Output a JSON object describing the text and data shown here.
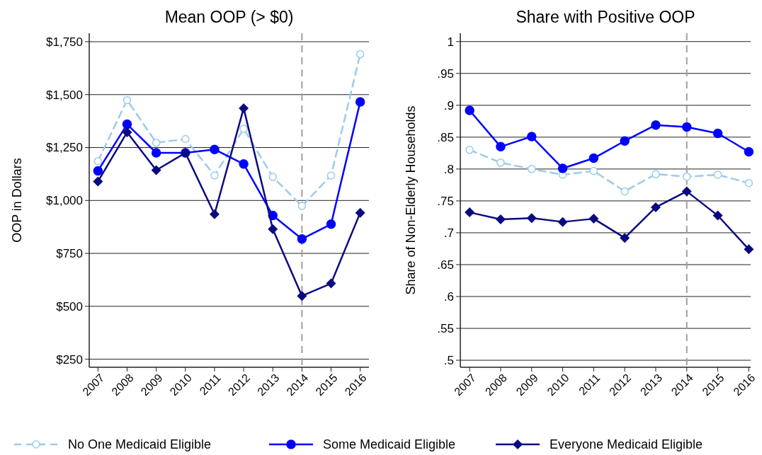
{
  "chart_data": [
    {
      "type": "line",
      "title": "Mean OOP (> $0)",
      "ylabel": "OOP in Dollars",
      "x": [
        2007,
        2008,
        2009,
        2010,
        2011,
        2012,
        2013,
        2014,
        2015,
        2016
      ],
      "xlim": [
        2006.7,
        2016.3
      ],
      "xticks": [
        2007,
        2008,
        2009,
        2010,
        2011,
        2012,
        2013,
        2014,
        2015,
        2016
      ],
      "ylim": [
        212,
        1790
      ],
      "yticks": [
        {
          "value": 250,
          "label": "$250"
        },
        {
          "value": 500,
          "label": "$500"
        },
        {
          "value": 750,
          "label": "$750"
        },
        {
          "value": 1000,
          "label": "$1,000"
        },
        {
          "value": 1250,
          "label": "$1,250"
        },
        {
          "value": 1500,
          "label": "$1,500"
        },
        {
          "value": 1750,
          "label": "$1,750"
        }
      ],
      "grid": "y",
      "legend": "bottom",
      "ref_lines": [
        {
          "axis": "x",
          "value": 2014,
          "color": "#a0a0a0",
          "line_style": "dashed"
        }
      ],
      "series": [
        {
          "name": "No One Medicaid Eligible",
          "color": "#9ccbeb",
          "line_style": "dashed",
          "marker": "circle",
          "values": [
            1186,
            1474,
            1273,
            1290,
            1118,
            1339,
            1111,
            974,
            1118,
            1691
          ]
        },
        {
          "name": "Some Medicaid Eligible",
          "color": "#0000ff",
          "line_style": "solid",
          "marker": "circle",
          "values": [
            1140,
            1360,
            1225,
            1225,
            1241,
            1172,
            929,
            818,
            888,
            1466
          ]
        },
        {
          "name": "Everyone Medicaid Eligible",
          "color": "#0a0a80",
          "line_style": "solid",
          "marker": "diamond",
          "values": [
            1090,
            1322,
            1143,
            1225,
            935,
            1436,
            865,
            549,
            608,
            942
          ]
        }
      ]
    },
    {
      "type": "line",
      "title": "Share with Positive OOP",
      "ylabel": "Share of Non-Elderly Households",
      "x": [
        2007,
        2008,
        2009,
        2010,
        2011,
        2012,
        2013,
        2014,
        2015,
        2016
      ],
      "xlim": [
        2006.7,
        2016.06
      ],
      "xticks": [
        2007,
        2008,
        2009,
        2010,
        2011,
        2012,
        2013,
        2014,
        2015,
        2016
      ],
      "ylim": [
        0.489,
        1.013
      ],
      "yticks": [
        {
          "value": 0.5,
          "label": ".5"
        },
        {
          "value": 0.55,
          "label": ".55"
        },
        {
          "value": 0.6,
          "label": ".6"
        },
        {
          "value": 0.65,
          "label": ".65"
        },
        {
          "value": 0.7,
          "label": ".7"
        },
        {
          "value": 0.75,
          "label": ".75"
        },
        {
          "value": 0.8,
          "label": ".8"
        },
        {
          "value": 0.85,
          "label": ".85"
        },
        {
          "value": 0.9,
          "label": ".9"
        },
        {
          "value": 0.95,
          "label": ".95"
        },
        1
      ],
      "grid": "y",
      "ref_lines": [
        {
          "axis": "x",
          "value": 2014,
          "color": "#a0a0a0",
          "line_style": "dashed"
        }
      ],
      "series": [
        {
          "color": "#9ccbeb",
          "line_style": "dashed",
          "marker": "circle",
          "values": [
            0.83,
            0.81,
            0.8,
            0.791,
            0.797,
            0.765,
            0.792,
            0.788,
            0.791,
            0.778
          ]
        },
        {
          "color": "#0000ff",
          "line_style": "solid",
          "marker": "circle",
          "values": [
            0.892,
            0.835,
            0.851,
            0.801,
            0.817,
            0.844,
            0.869,
            0.866,
            0.856,
            0.827
          ]
        },
        {
          "color": "#0a0a80",
          "line_style": "solid",
          "marker": "diamond",
          "values": [
            0.732,
            0.721,
            0.723,
            0.717,
            0.722,
            0.692,
            0.74,
            0.765,
            0.727,
            0.674
          ]
        }
      ]
    }
  ]
}
